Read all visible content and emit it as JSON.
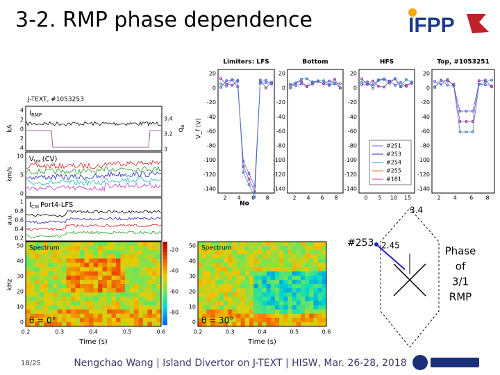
{
  "title": "3-2. RMP phase dependence",
  "logo": "IFPP",
  "footer": {
    "page": "18/25",
    "text": "Nengchao Wang | Island Divertor on J-TEXT | HISW, Mar. 26-28, 2018"
  },
  "time_traces": {
    "title": "J-TEXT, #1053253",
    "panels": [
      {
        "label": "I",
        "label_sub": "RMP",
        "unit": "kA",
        "yticks": [
          "4",
          "2",
          "0",
          "2",
          "4"
        ],
        "right_unit": "q",
        "right_unit_sub": "a",
        "right_ticks": [
          "3.4",
          "3.2",
          "3"
        ]
      },
      {
        "label": "V",
        "label_sub": "tor",
        "label_rest": "(CV)",
        "unit": "km/s",
        "yticks": [
          "10",
          "5",
          "0"
        ]
      },
      {
        "label": "I",
        "label_sub": "CIII",
        "label_rest": "Port4-LFS",
        "unit": "a.u.",
        "yticks": [
          "1",
          "0.8",
          "0.6",
          "0.4",
          "0.2"
        ]
      }
    ]
  },
  "spectrograms": {
    "ylabel": "kHz",
    "xlabel": "Time (s)",
    "yticks": [
      "50",
      "40",
      "30",
      "20",
      "10",
      "0"
    ],
    "xticks": [
      "0.2",
      "0.3",
      "0.4",
      "0.5",
      "0.6"
    ],
    "colorbar_ticks": [
      "-20",
      "-40",
      "-60",
      "-80"
    ],
    "panels": [
      {
        "title": "Spectrum",
        "angle": "θ = 0°"
      },
      {
        "title": "Spectrum",
        "angle": "θ = 30°"
      }
    ]
  },
  "profiles": {
    "ylabel": "V_f (V)",
    "xlabel": "No",
    "yticks": [
      "20",
      "0",
      "-20",
      "-40",
      "-60",
      "-80",
      "-100",
      "-120",
      "-140"
    ],
    "panels": [
      {
        "title": "Limiters: LFS",
        "xticks": [
          "2",
          "4",
          "6",
          "8"
        ]
      },
      {
        "title": "Bottom",
        "xticks": [
          "2",
          "4",
          "6",
          "8"
        ]
      },
      {
        "title": "HFS",
        "xticks": [
          "0",
          "5",
          "10",
          "15"
        ]
      },
      {
        "title": "Top, #1053251",
        "xticks": [
          "2",
          "4",
          "6",
          "8"
        ]
      }
    ],
    "legend": [
      "#251",
      "#253",
      "#254",
      "#255",
      "#181"
    ]
  },
  "phase_diagram": {
    "top_label": "3.4",
    "shot": "#253",
    "value": "2.45",
    "caption": [
      "Phase",
      "of",
      "3/1",
      "RMP"
    ]
  }
}
